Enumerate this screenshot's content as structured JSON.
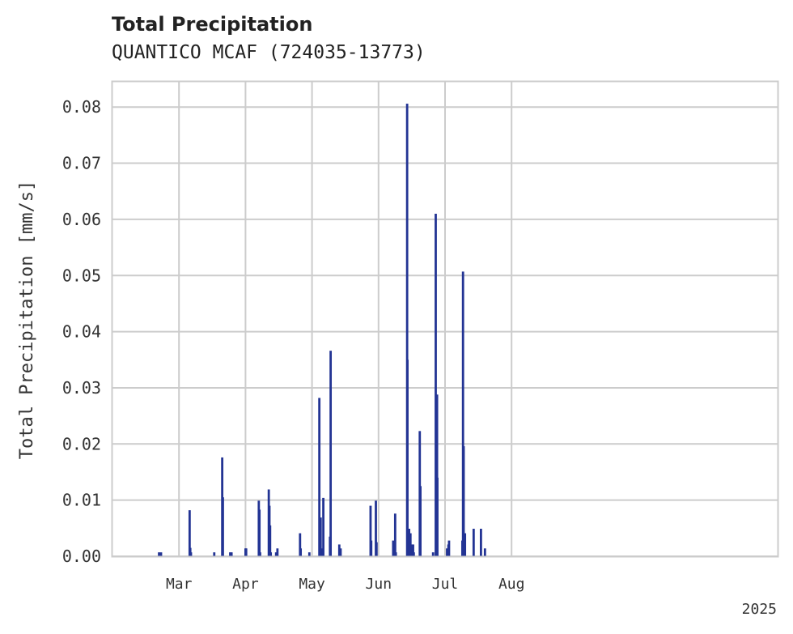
{
  "header": {
    "title": "Total Precipitation",
    "subtitle": "QUANTICO MCAF (724035-13773)"
  },
  "colors": {
    "bar": "#233494",
    "grid": "#cccccc",
    "frame": "#cccccc"
  },
  "chart_data": {
    "type": "bar",
    "title": "Total Precipitation",
    "subtitle": "QUANTICO MCAF (724035-13773)",
    "xlabel": "",
    "ylabel": "Total Precipitation [mm/s]",
    "x_range_days": [
      -10,
      90
    ],
    "ylim": [
      0,
      0.0845
    ],
    "grid": true,
    "y_ticks": [
      {
        "value": 0.0,
        "label": "0.00"
      },
      {
        "value": 0.01,
        "label": "0.01"
      },
      {
        "value": 0.02,
        "label": "0.02"
      },
      {
        "value": 0.03,
        "label": "0.03"
      },
      {
        "value": 0.04,
        "label": "0.04"
      },
      {
        "value": 0.05,
        "label": "0.05"
      },
      {
        "value": 0.06,
        "label": "0.06"
      },
      {
        "value": 0.07,
        "label": "0.07"
      },
      {
        "value": 0.08,
        "label": "0.08"
      }
    ],
    "x_gridlines_days": [
      0,
      10,
      20,
      30,
      40,
      50
    ],
    "x_ticks": [
      {
        "day": 0,
        "label": "Mar"
      },
      {
        "day": 10,
        "label": "Apr"
      },
      {
        "day": 20,
        "label": "May"
      },
      {
        "day": 30,
        "label": "Jun"
      },
      {
        "day": 40,
        "label": "Jul"
      },
      {
        "day": 50,
        "label": "Aug"
      }
    ],
    "year_label": "2025",
    "series": [
      {
        "name": "Total Precipitation",
        "points": [
          {
            "day": -3.0,
            "value": 0.0007
          },
          {
            "day": -2.7,
            "value": 0.0007
          },
          {
            "day": 1.6,
            "value": 0.0082
          },
          {
            "day": 1.7,
            "value": 0.0015
          },
          {
            "day": 1.8,
            "value": 0.0007
          },
          {
            "day": 5.3,
            "value": 0.0007
          },
          {
            "day": 6.5,
            "value": 0.0176
          },
          {
            "day": 6.6,
            "value": 0.0105
          },
          {
            "day": 7.7,
            "value": 0.0007
          },
          {
            "day": 7.9,
            "value": 0.0007
          },
          {
            "day": 10.0,
            "value": 0.0014
          },
          {
            "day": 10.1,
            "value": 0.0014
          },
          {
            "day": 12.0,
            "value": 0.0099
          },
          {
            "day": 12.1,
            "value": 0.0083
          },
          {
            "day": 12.2,
            "value": 0.0007
          },
          {
            "day": 13.5,
            "value": 0.0119
          },
          {
            "day": 13.6,
            "value": 0.009
          },
          {
            "day": 13.7,
            "value": 0.0055
          },
          {
            "day": 13.8,
            "value": 0.0007
          },
          {
            "day": 14.6,
            "value": 0.0007
          },
          {
            "day": 14.8,
            "value": 0.0014
          },
          {
            "day": 18.2,
            "value": 0.0041
          },
          {
            "day": 18.3,
            "value": 0.0014
          },
          {
            "day": 19.6,
            "value": 0.0007
          },
          {
            "day": 21.1,
            "value": 0.0282
          },
          {
            "day": 21.3,
            "value": 0.0069
          },
          {
            "day": 21.5,
            "value": 0.0007
          },
          {
            "day": 21.6,
            "value": 0.0014
          },
          {
            "day": 21.7,
            "value": 0.0104
          },
          {
            "day": 22.7,
            "value": 0.0035
          },
          {
            "day": 22.8,
            "value": 0.0366
          },
          {
            "day": 24.1,
            "value": 0.0021
          },
          {
            "day": 24.3,
            "value": 0.0014
          },
          {
            "day": 28.8,
            "value": 0.009
          },
          {
            "day": 28.9,
            "value": 0.0028
          },
          {
            "day": 29.6,
            "value": 0.0099
          },
          {
            "day": 29.7,
            "value": 0.0025
          },
          {
            "day": 32.2,
            "value": 0.0028
          },
          {
            "day": 32.5,
            "value": 0.0076
          },
          {
            "day": 32.6,
            "value": 0.0007
          },
          {
            "day": 34.3,
            "value": 0.0806
          },
          {
            "day": 34.35,
            "value": 0.035
          },
          {
            "day": 34.6,
            "value": 0.0049
          },
          {
            "day": 34.8,
            "value": 0.0041
          },
          {
            "day": 35.0,
            "value": 0.0021
          },
          {
            "day": 35.2,
            "value": 0.0021
          },
          {
            "day": 35.3,
            "value": 0.0007
          },
          {
            "day": 36.2,
            "value": 0.0223
          },
          {
            "day": 36.3,
            "value": 0.0125
          },
          {
            "day": 38.2,
            "value": 0.0007
          },
          {
            "day": 38.6,
            "value": 0.061
          },
          {
            "day": 38.8,
            "value": 0.0288
          },
          {
            "day": 38.85,
            "value": 0.014
          },
          {
            "day": 40.3,
            "value": 0.0014
          },
          {
            "day": 40.5,
            "value": 0.0021
          },
          {
            "day": 40.6,
            "value": 0.0028
          },
          {
            "day": 42.6,
            "value": 0.0028
          },
          {
            "day": 42.7,
            "value": 0.0507
          },
          {
            "day": 42.8,
            "value": 0.0196
          },
          {
            "day": 43.0,
            "value": 0.0041
          },
          {
            "day": 44.3,
            "value": 0.0049
          },
          {
            "day": 45.4,
            "value": 0.0049
          },
          {
            "day": 46.0,
            "value": 0.0014
          }
        ]
      }
    ]
  }
}
